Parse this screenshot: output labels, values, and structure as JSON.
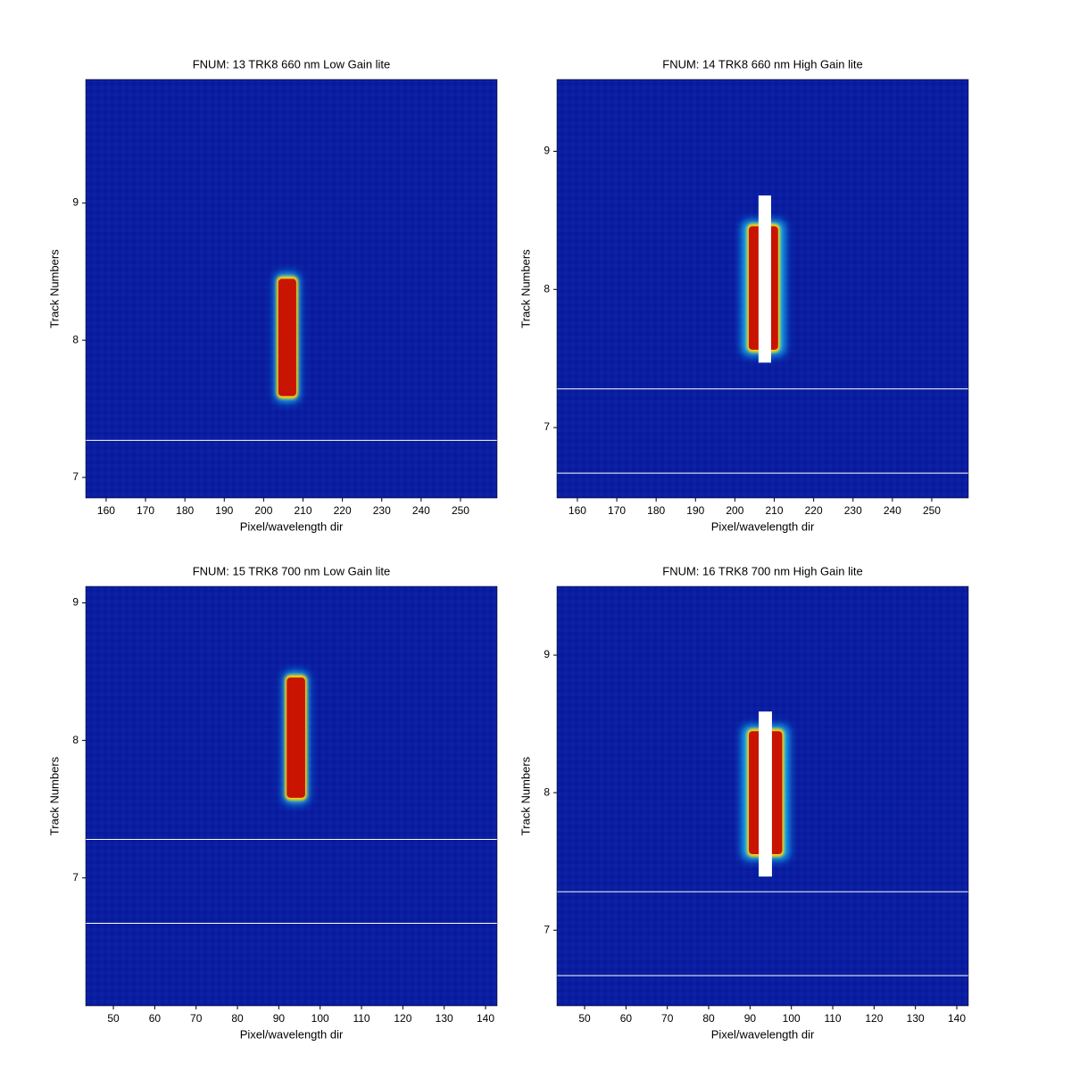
{
  "chart_data": [
    {
      "type": "image",
      "title": "FNUM: 13 TRK8 660 nm Low Gain lite",
      "x_label": "Pixel/wavelength dir",
      "y_label": "Track Numbers",
      "xlim": [
        154.8,
        259.3
      ],
      "ylim": [
        6.85,
        9.9
      ],
      "xticks": [
        160,
        170,
        180,
        190,
        200,
        210,
        220,
        230,
        240,
        250
      ],
      "yticks": [
        7,
        8,
        9
      ],
      "spot": {
        "x": [
          203.5,
          208.5
        ],
        "y": [
          7.58,
          8.46
        ]
      },
      "hlines": [
        7.27
      ]
    },
    {
      "type": "image",
      "title": "FNUM: 14 TRK8 660 nm High Gain lite",
      "x_label": "Pixel/wavelength dir",
      "y_label": "Track Numbers",
      "xlim": [
        154.8,
        259.3
      ],
      "ylim": [
        6.49,
        9.52
      ],
      "xticks": [
        160,
        170,
        180,
        190,
        200,
        210,
        220,
        230,
        240,
        250
      ],
      "yticks": [
        7,
        8,
        9
      ],
      "spot": {
        "x": [
          203.3,
          211.2
        ],
        "y": [
          7.55,
          8.47
        ]
      },
      "saturated": {
        "x": [
          206,
          209.2
        ],
        "y": [
          7.47,
          8.68
        ]
      },
      "hlines": [
        7.28,
        6.67
      ]
    },
    {
      "type": "image",
      "title": "FNUM: 15 TRK8 700 nm Low Gain lite",
      "x_label": "Pixel/wavelength dir",
      "y_label": "Track Numbers",
      "xlim": [
        43.3,
        142.8
      ],
      "ylim": [
        6.07,
        9.12
      ],
      "xticks": [
        50,
        60,
        70,
        80,
        90,
        100,
        110,
        120,
        130,
        140
      ],
      "yticks": [
        7,
        8,
        9
      ],
      "spot": {
        "x": [
          91.7,
          96.6
        ],
        "y": [
          7.57,
          8.47
        ]
      },
      "hlines": [
        7.28,
        6.67
      ]
    },
    {
      "type": "image",
      "title": "FNUM: 16 TRK8 700 nm High Gain lite",
      "x_label": "Pixel/wavelength dir",
      "y_label": "Track Numbers",
      "xlim": [
        43.3,
        142.8
      ],
      "ylim": [
        6.45,
        9.5
      ],
      "xticks": [
        50,
        60,
        70,
        80,
        90,
        100,
        110,
        120,
        130,
        140
      ],
      "yticks": [
        7,
        8,
        9
      ],
      "spot": {
        "x": [
          89.5,
          98
        ],
        "y": [
          7.54,
          8.46
        ]
      },
      "saturated": {
        "x": [
          92.1,
          95.3
        ],
        "y": [
          7.39,
          8.59
        ]
      },
      "hlines": [
        7.28,
        6.67
      ]
    }
  ]
}
